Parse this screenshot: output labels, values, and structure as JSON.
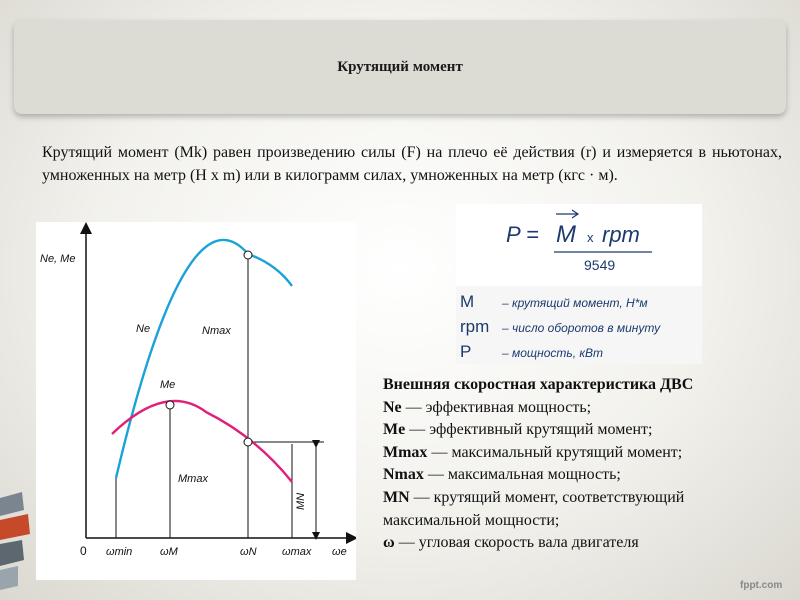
{
  "title": "Крутящий момент",
  "intro": "Крутящий момент (Mk) равен произведению силы (F) на плечо её действия (r) и измеряется в ньютонах, умноженных на метр (Н х m) или в килограмм силах, умноженных на метр (кгс · м).",
  "formula": {
    "lhs": "P =",
    "numerator_var": "M",
    "times": "x",
    "rpm": "rpm",
    "denominator": "9549",
    "defs": [
      {
        "sym": "M",
        "desc": "– крутящий момент, Н*м"
      },
      {
        "sym": "rpm",
        "desc": "– число оборотов в минуту"
      },
      {
        "sym": "P",
        "desc": "– мощность, кВт"
      }
    ]
  },
  "legend": {
    "heading": "Внешняя скоростная характеристика ДВС",
    "items": [
      {
        "term": "Ne",
        "desc": "— эффективная мощность;"
      },
      {
        "term": "Me",
        "desc": "— эффективный крутящий момент;"
      },
      {
        "term": "Mmax",
        "desc": "— максимальный крутящий момент;"
      },
      {
        "term": "Nmax",
        "desc": "— максимальная мощность;"
      },
      {
        "term": "MN",
        "desc": "— крутящий момент, соответствующий максимальной мощности;"
      },
      {
        "term": "ω",
        "desc": "— угловая скорость вала двигателя"
      }
    ]
  },
  "graph": {
    "y_axis_label": "Ne, Me",
    "origin": "0",
    "x_ticks": [
      "ωmin",
      "ωM",
      "ωN",
      "ωmax",
      "ωe"
    ],
    "labels": {
      "ne": "Ne",
      "nmax": "Nmax",
      "me": "Me",
      "mmax": "Mmax",
      "mn": "MN"
    },
    "colors": {
      "power": "#1aa3d9",
      "torque": "#e0207a"
    }
  },
  "footer": {
    "logo": "fppt.com"
  }
}
